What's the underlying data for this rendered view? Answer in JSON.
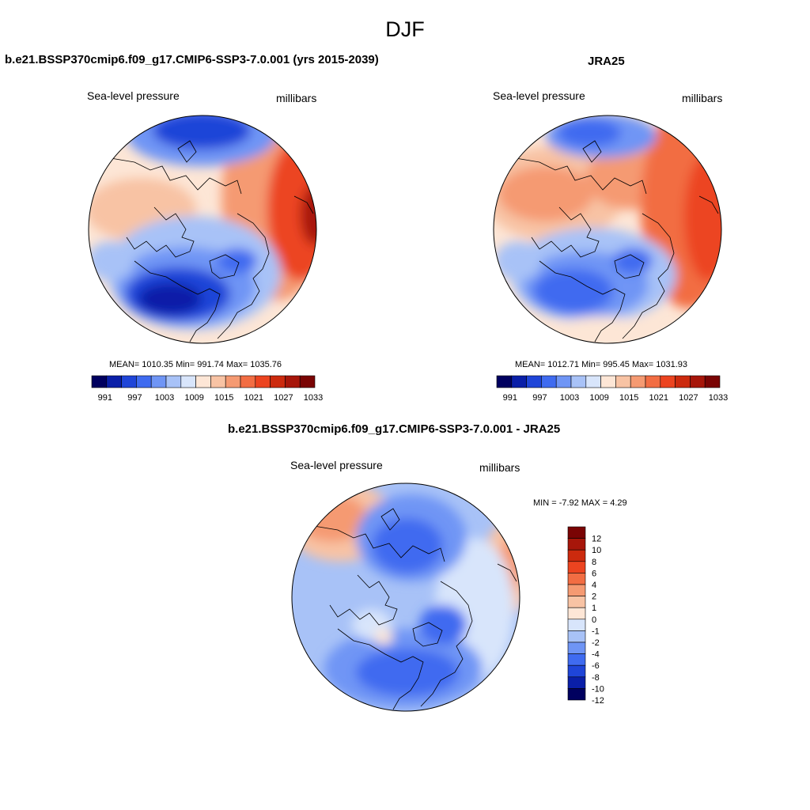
{
  "title": "DJF",
  "panels": [
    {
      "heading": "b.e21.BSSP370cmip6.f09_g17.CMIP6-SSP3-7.0.001 (yrs 2015-2039)",
      "variable": "Sea-level pressure",
      "units": "millibars",
      "stats_text": "MEAN= 1010.35  Min= 991.74  Max= 1035.76"
    },
    {
      "heading": "JRA25",
      "variable": "Sea-level pressure",
      "units": "millibars",
      "stats_text": "MEAN= 1012.71  Min= 995.45  Max= 1031.93"
    },
    {
      "heading": "b.e21.BSSP370cmip6.f09_g17.CMIP6-SSP3-7.0.001 - JRA25",
      "variable": "Sea-level pressure",
      "units": "millibars",
      "stats_text": "MIN =  -7.92 MAX =   4.29"
    }
  ],
  "colorbar_horizontal": {
    "labels": [
      "991",
      "997",
      "1003",
      "1009",
      "1015",
      "1021",
      "1027",
      "1033"
    ],
    "colors": [
      "#00005f",
      "#0a1fa8",
      "#1f45d8",
      "#3f6bf0",
      "#6f95f5",
      "#a8c2f7",
      "#d8e5fb",
      "#fde6d6",
      "#f8c3a4",
      "#f59a72",
      "#f26d43",
      "#ec4420",
      "#cc2a0e",
      "#a7160a",
      "#7a0404"
    ]
  },
  "colorbar_vertical": {
    "labels": [
      "12",
      "10",
      "8",
      "6",
      "4",
      "2",
      "1",
      "0",
      "-1",
      "-2",
      "-4",
      "-6",
      "-8",
      "-10",
      "-12"
    ],
    "colors": [
      "#7a0404",
      "#a7160a",
      "#cc2a0e",
      "#ec4420",
      "#f26d43",
      "#f59a72",
      "#f8c3a4",
      "#fde6d6",
      "#d8e5fb",
      "#a8c2f7",
      "#6f95f5",
      "#3f6bf0",
      "#1f45d8",
      "#0a1fa8",
      "#00005f"
    ]
  }
}
